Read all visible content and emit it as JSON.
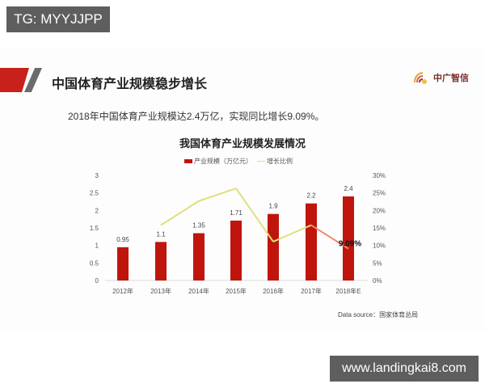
{
  "watermarks": {
    "top_left": "TG: MYYJJPP",
    "bottom_right": "www.landingkai8.com"
  },
  "slide": {
    "title": "中国体育产业规模稳步增长",
    "logo_text": "中广智信",
    "subtitle": "2018年中国体育产业规模达2.4万亿，实现同比增长9.09%。",
    "source": "Data source：国家体育总局"
  },
  "colors": {
    "bar": "#c0150c",
    "line": "#e0e07a",
    "line_last_segment": "#f08a6a",
    "header_red": "#c8201a",
    "header_gray": "#6b6b6b"
  },
  "chart_data": {
    "type": "bar",
    "title": "我国体育产业规模发展情况",
    "categories": [
      "2012年",
      "2013年",
      "2014年",
      "2015年",
      "2016年",
      "2017年",
      "2018年E"
    ],
    "series": [
      {
        "name": "产业规模（万亿元）",
        "type": "bar",
        "axis": "left",
        "values": [
          0.95,
          1.1,
          1.35,
          1.71,
          1.9,
          2.2,
          2.4
        ],
        "labels": [
          "0.95",
          "1.1",
          "1.35",
          "1.71",
          "1.9",
          "2.2",
          "2.4"
        ]
      },
      {
        "name": "增长比例",
        "type": "line",
        "axis": "right",
        "values": [
          null,
          15.8,
          22.7,
          26.3,
          11.1,
          15.8,
          9.09
        ],
        "annotation": "9.09%"
      }
    ],
    "left_axis": {
      "ticks": [
        "0",
        "0.5",
        "1",
        "1.5",
        "2",
        "2.5",
        "3"
      ],
      "ylim": [
        0,
        3
      ]
    },
    "right_axis": {
      "ticks": [
        "0%",
        "5%",
        "10%",
        "15%",
        "20%",
        "25%",
        "30%"
      ],
      "ylim": [
        0,
        30
      ]
    },
    "xlabel": "",
    "ylabel": "",
    "grid": false,
    "legend_position": "top"
  }
}
